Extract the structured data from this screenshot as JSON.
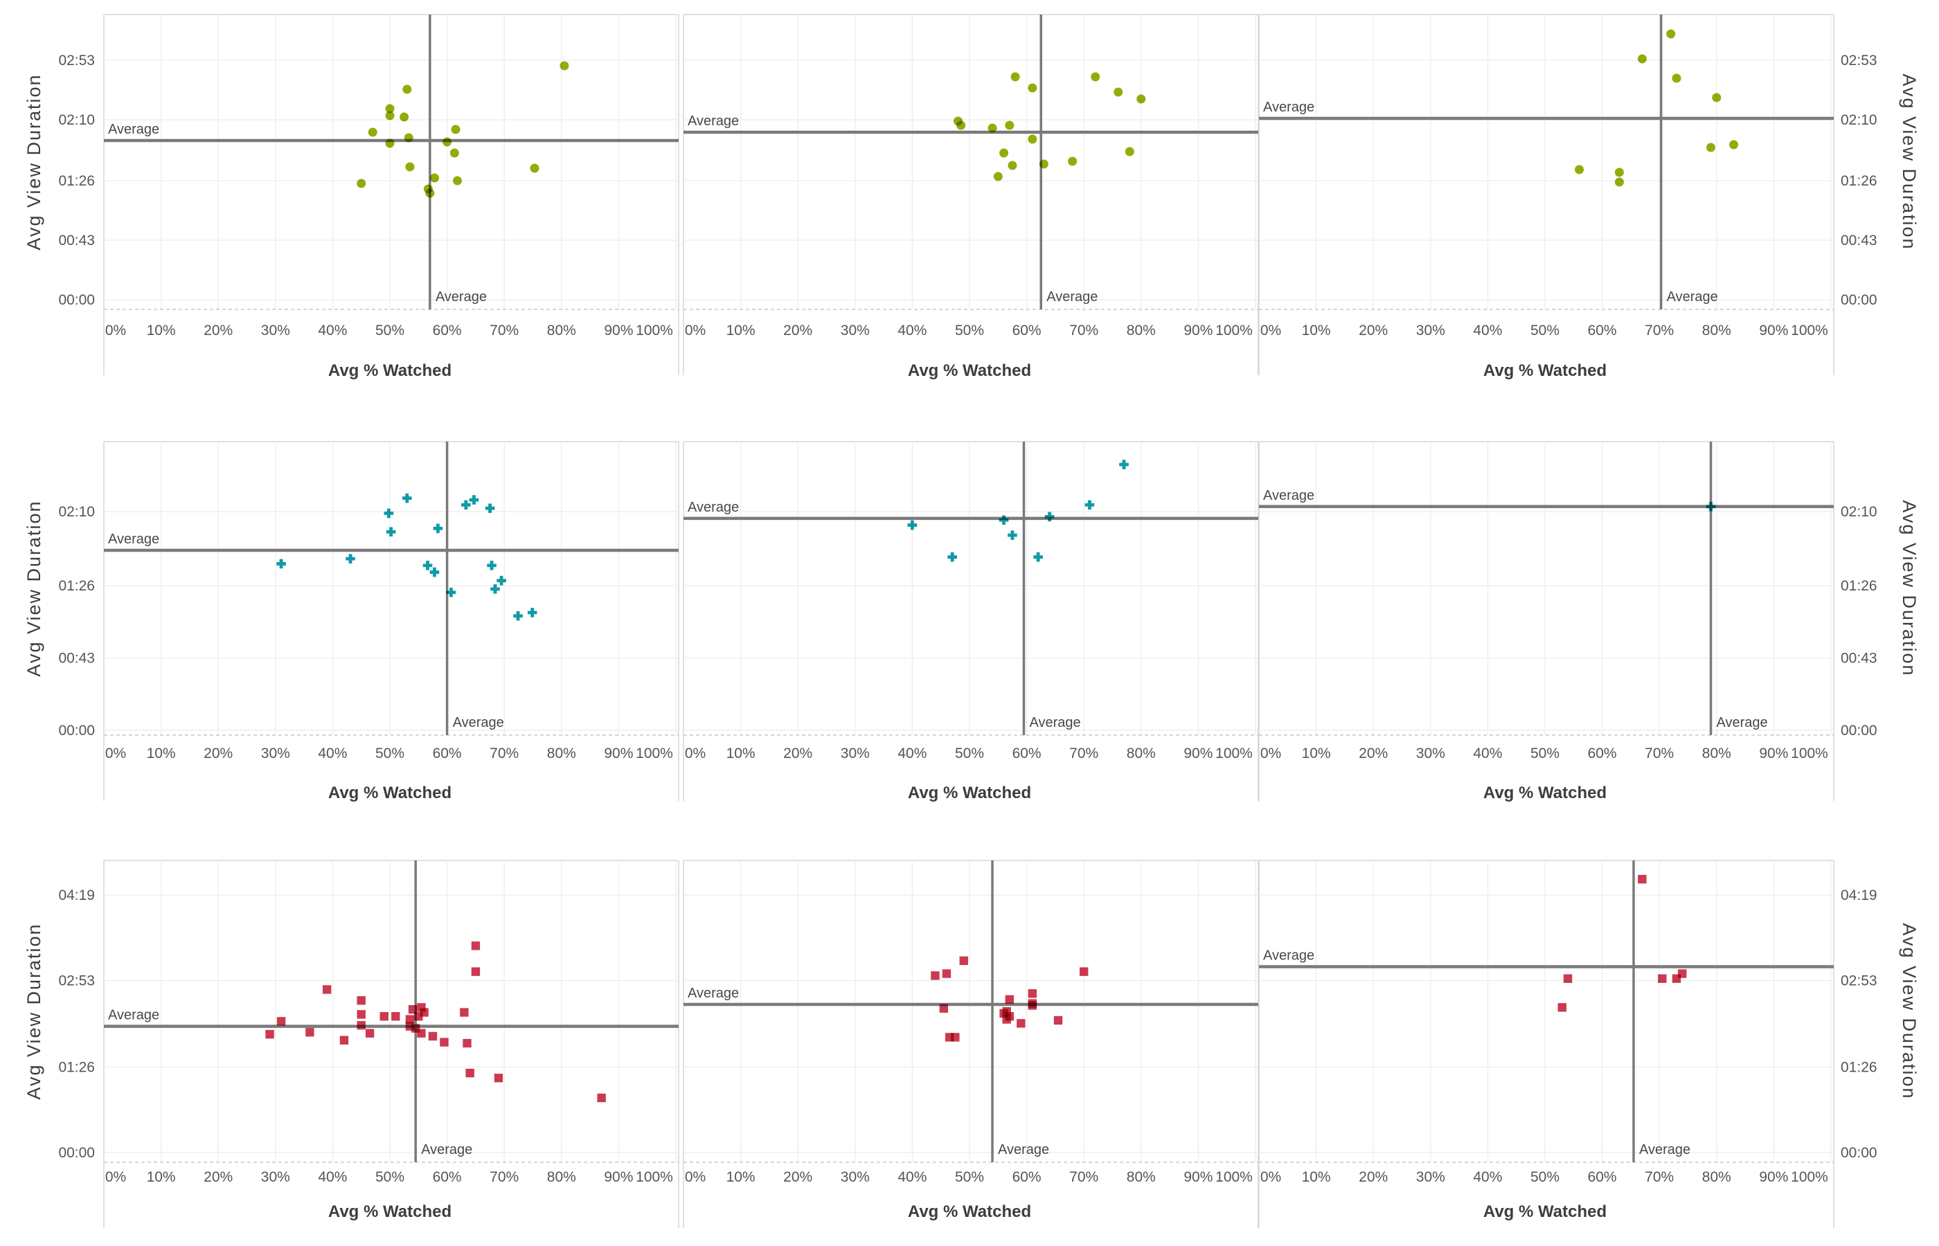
{
  "chart_data": {
    "type": "scatter",
    "title": "",
    "layout": {
      "rows": 3,
      "cols": 3,
      "grid": "on",
      "legend": "none"
    },
    "xlabel": "Avg % Watched",
    "ylabel": "Avg View Duration",
    "x_ticks": [
      "0%",
      "10%",
      "20%",
      "30%",
      "40%",
      "50%",
      "60%",
      "70%",
      "80%",
      "90%",
      "100%"
    ],
    "x_range_pct": [
      0,
      101
    ],
    "reference_line_label": "Average",
    "rows": [
      {
        "marker": "circle",
        "color": "#90ae0b",
        "y_ticks": [
          "02:53",
          "02:10",
          "01:26",
          "00:43",
          "00:00"
        ],
        "y_range_seconds": [
          -7,
          206
        ],
        "panels": [
          {
            "avg_x_pct": 57,
            "avg_y": "01:55",
            "points": [
              [
                80.5,
                "02:49"
              ],
              [
                53,
                "02:32"
              ],
              [
                50,
                "02:18"
              ],
              [
                50,
                "02:13"
              ],
              [
                52.5,
                "02:12"
              ],
              [
                47,
                "02:01"
              ],
              [
                61.5,
                "02:03"
              ],
              [
                53.3,
                "01:57"
              ],
              [
                50,
                "01:53"
              ],
              [
                60,
                "01:54"
              ],
              [
                61.3,
                "01:46"
              ],
              [
                53.5,
                "01:36"
              ],
              [
                75.3,
                "01:35"
              ],
              [
                57.8,
                "01:28"
              ],
              [
                45,
                "01:24"
              ],
              [
                61.8,
                "01:26"
              ],
              [
                56.7,
                "01:20"
              ],
              [
                57,
                "01:17"
              ]
            ]
          },
          {
            "avg_x_pct": 62.5,
            "avg_y": "02:01",
            "points": [
              [
                58,
                "02:41"
              ],
              [
                61,
                "02:33"
              ],
              [
                72,
                "02:41"
              ],
              [
                76,
                "02:30"
              ],
              [
                80,
                "02:25"
              ],
              [
                48,
                "02:09"
              ],
              [
                48.5,
                "02:06"
              ],
              [
                54,
                "02:04"
              ],
              [
                57,
                "02:06"
              ],
              [
                61,
                "01:56"
              ],
              [
                56,
                "01:46"
              ],
              [
                57.5,
                "01:37"
              ],
              [
                63,
                "01:38"
              ],
              [
                68,
                "01:40"
              ],
              [
                78,
                "01:47"
              ],
              [
                55,
                "01:29"
              ]
            ]
          },
          {
            "avg_x_pct": 70.3,
            "avg_y": "02:11",
            "points": [
              [
                72,
                "03:12"
              ],
              [
                67,
                "02:54"
              ],
              [
                73,
                "02:40"
              ],
              [
                80,
                "02:26"
              ],
              [
                79,
                "01:50"
              ],
              [
                83,
                "01:52"
              ],
              [
                56,
                "01:34"
              ],
              [
                63,
                "01:32"
              ],
              [
                63,
                "01:25"
              ]
            ]
          }
        ]
      },
      {
        "marker": "plus",
        "color": "#0f9ba8",
        "y_ticks": [
          "02:10",
          "01:26",
          "00:43",
          "00:00"
        ],
        "y_range_seconds": [
          -3,
          172
        ],
        "panels": [
          {
            "avg_x_pct": 60,
            "avg_y": "01:47",
            "points": [
              [
                53,
                "02:18"
              ],
              [
                64.7,
                "02:17"
              ],
              [
                63.3,
                "02:14"
              ],
              [
                67.5,
                "02:12"
              ],
              [
                49.8,
                "02:09"
              ],
              [
                58.4,
                "02:00"
              ],
              [
                50.2,
                "01:58"
              ],
              [
                43.1,
                "01:42"
              ],
              [
                31,
                "01:39"
              ],
              [
                56.6,
                "01:38"
              ],
              [
                67.8,
                "01:38"
              ],
              [
                57.8,
                "01:34"
              ],
              [
                69.5,
                "01:29"
              ],
              [
                68.4,
                "01:24"
              ],
              [
                60.7,
                "01:22"
              ],
              [
                74.9,
                "01:10"
              ],
              [
                72.4,
                "01:08"
              ]
            ]
          },
          {
            "avg_x_pct": 59.5,
            "avg_y": "02:06",
            "points": [
              [
                77,
                "02:38"
              ],
              [
                71,
                "02:14"
              ],
              [
                64,
                "02:07"
              ],
              [
                56,
                "02:05"
              ],
              [
                40,
                "02:02"
              ],
              [
                57.5,
                "01:56"
              ],
              [
                47,
                "01:43"
              ],
              [
                62,
                "01:43"
              ]
            ]
          },
          {
            "avg_x_pct": 79,
            "avg_y": "02:13",
            "points": [
              [
                79,
                "02:13"
              ]
            ]
          }
        ]
      },
      {
        "marker": "square",
        "color": "#cb3a50",
        "y_ticks": [
          "04:19",
          "02:53",
          "01:26",
          "00:00"
        ],
        "y_range_seconds": [
          -10,
          294
        ],
        "panels": [
          {
            "avg_x_pct": 54.5,
            "avg_y": "02:07",
            "points": [
              [
                39,
                "02:44"
              ],
              [
                45,
                "02:33"
              ],
              [
                65,
                "03:28"
              ],
              [
                65,
                "03:02"
              ],
              [
                31,
                "02:12"
              ],
              [
                29,
                "01:59"
              ],
              [
                36,
                "02:01"
              ],
              [
                42,
                "01:53"
              ],
              [
                45,
                "02:19"
              ],
              [
                45,
                "02:08"
              ],
              [
                46.5,
                "02:00"
              ],
              [
                49,
                "02:17"
              ],
              [
                51,
                "02:17"
              ],
              [
                53.5,
                "02:14"
              ],
              [
                54,
                "02:24"
              ],
              [
                55.5,
                "02:26"
              ],
              [
                56,
                "02:21"
              ],
              [
                55,
                "02:17"
              ],
              [
                53.5,
                "02:07"
              ],
              [
                54.5,
                "02:05"
              ],
              [
                55.5,
                "02:00"
              ],
              [
                57.5,
                "01:57"
              ],
              [
                59.5,
                "01:51"
              ],
              [
                63.5,
                "01:50"
              ],
              [
                63,
                "02:21"
              ],
              [
                64,
                "01:20"
              ],
              [
                69,
                "01:15"
              ],
              [
                87,
                "00:55"
              ]
            ]
          },
          {
            "avg_x_pct": 54,
            "avg_y": "02:29",
            "points": [
              [
                49,
                "03:13"
              ],
              [
                44,
                "02:58"
              ],
              [
                46,
                "03:00"
              ],
              [
                70,
                "03:02"
              ],
              [
                61,
                "02:40"
              ],
              [
                57,
                "02:34"
              ],
              [
                61,
                "02:30"
              ],
              [
                61,
                "02:28"
              ],
              [
                45.5,
                "02:25"
              ],
              [
                56.5,
                "02:22"
              ],
              [
                56,
                "02:20"
              ],
              [
                57,
                "02:17"
              ],
              [
                56.5,
                "02:14"
              ],
              [
                59,
                "02:10"
              ],
              [
                65.5,
                "02:13"
              ],
              [
                46.5,
                "01:56"
              ],
              [
                47.5,
                "01:56"
              ]
            ]
          },
          {
            "avg_x_pct": 65.5,
            "avg_y": "03:07",
            "points": [
              [
                67,
                "04:35"
              ],
              [
                54,
                "02:55"
              ],
              [
                53,
                "02:26"
              ],
              [
                70.5,
                "02:55"
              ],
              [
                73,
                "02:55"
              ],
              [
                74,
                "03:00"
              ]
            ]
          }
        ]
      }
    ]
  },
  "style": {
    "background": "#ffffff",
    "grid_color": "#efefef",
    "panel_border_color": "#d6d6d6",
    "dashed_axis_color": "#c8c8c8",
    "reference_line_color": "#7a7a7a",
    "tick_label_color": "#555555",
    "axis_title_color": "#3d3d3d",
    "reference_label_color": "#484848",
    "series_colors": {
      "row1": "#90ae0b",
      "row2": "#0f9ba8",
      "row3": "#cb3a50"
    }
  }
}
